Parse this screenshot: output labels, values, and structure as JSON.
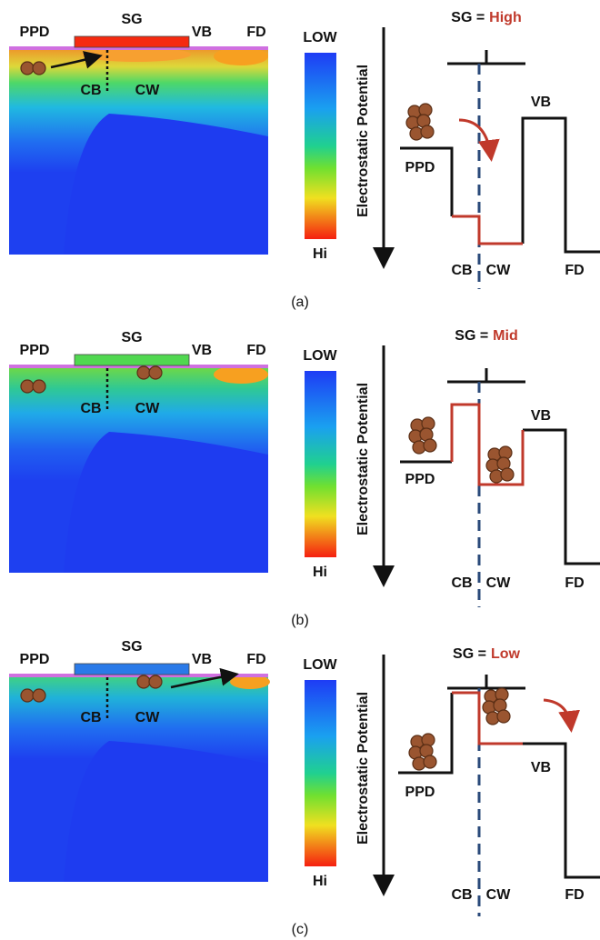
{
  "panels": [
    {
      "caption": "(a)",
      "simulation": {
        "ppd": "PPD",
        "sg": "SG",
        "vb": "VB",
        "fd": "FD",
        "cb": "CB",
        "cw": "CW"
      },
      "colorbar": {
        "top": "LOW",
        "bottom": "Hi"
      },
      "axis_label": "Electrostatic Potential",
      "diagram": {
        "title_prefix": "SG =",
        "state": "High",
        "ppd": "PPD",
        "vb": "VB",
        "cb": "CB",
        "cw": "CW",
        "fd": "FD"
      }
    },
    {
      "caption": "(b)",
      "simulation": {
        "ppd": "PPD",
        "sg": "SG",
        "vb": "VB",
        "fd": "FD",
        "cb": "CB",
        "cw": "CW"
      },
      "colorbar": {
        "top": "LOW",
        "bottom": "Hi"
      },
      "axis_label": "Electrostatic Potential",
      "diagram": {
        "title_prefix": "SG =",
        "state": "Mid",
        "ppd": "PPD",
        "vb": "VB",
        "cb": "CB",
        "cw": "CW",
        "fd": "FD"
      }
    },
    {
      "caption": "(c)",
      "simulation": {
        "ppd": "PPD",
        "sg": "SG",
        "vb": "VB",
        "fd": "FD",
        "cb": "CB",
        "cw": "CW"
      },
      "colorbar": {
        "top": "LOW",
        "bottom": "Hi"
      },
      "axis_label": "Electrostatic Potential",
      "diagram": {
        "title_prefix": "SG =",
        "state": "Low",
        "ppd": "PPD",
        "vb": "VB",
        "cb": "CB",
        "cw": "CW",
        "fd": "FD"
      }
    }
  ]
}
